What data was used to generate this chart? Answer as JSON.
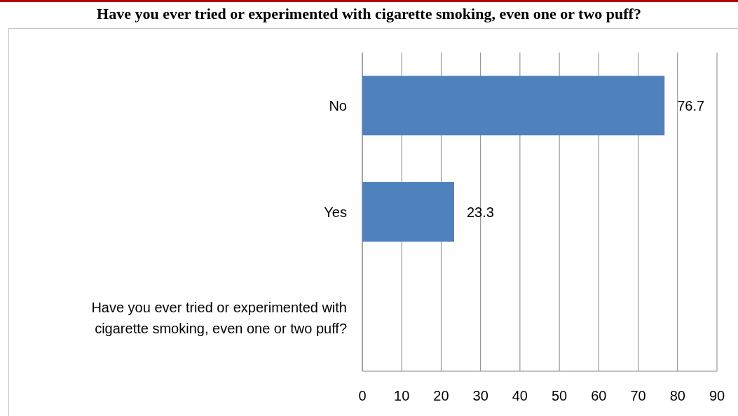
{
  "chart_data": {
    "type": "bar",
    "orientation": "horizontal",
    "title": "Have you ever tried or experimented with cigarette smoking, even one or two puff?",
    "categories": [
      "No",
      "Yes",
      "Have you ever tried or experimented with cigarette smoking, even one or two puff?"
    ],
    "values": [
      76.7,
      23.3,
      null
    ],
    "color": "#4f81bd",
    "data_labels": true,
    "xlim": [
      0,
      90
    ],
    "xticks": [
      0,
      10,
      20,
      30,
      40,
      50,
      60,
      70,
      80,
      90
    ],
    "grid": "x"
  }
}
